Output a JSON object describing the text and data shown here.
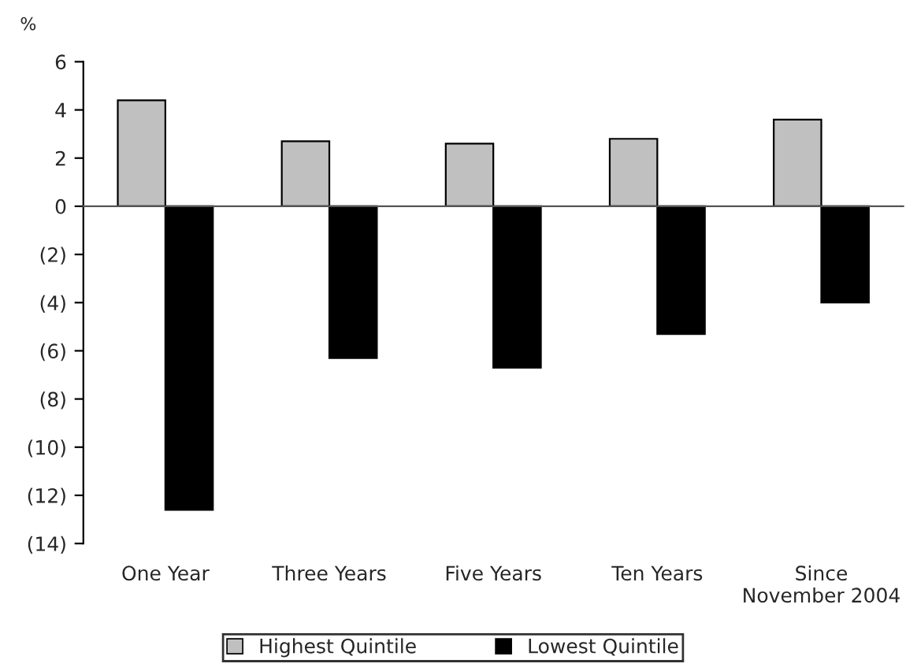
{
  "chart_data": {
    "type": "bar",
    "ylabel": "%",
    "categories": [
      "One Year",
      "Three Years",
      "Five Years",
      "Ten Years",
      "Since\nNovember 2004"
    ],
    "series": [
      {
        "name": "Highest Quintile",
        "color": "#c0c0c0",
        "values": [
          4.4,
          2.7,
          2.6,
          2.8,
          3.6
        ]
      },
      {
        "name": "Lowest Quintile",
        "color": "#000000",
        "values": [
          -12.6,
          -6.3,
          -6.7,
          -5.3,
          -4.0
        ]
      }
    ],
    "ylim": [
      -14,
      6
    ],
    "yticks": [
      {
        "value": -14,
        "label": "(14)"
      },
      {
        "value": -12,
        "label": "(12)"
      },
      {
        "value": -10,
        "label": "(10)"
      },
      {
        "value": -8,
        "label": "(8)"
      },
      {
        "value": -6,
        "label": "(6)"
      },
      {
        "value": -4,
        "label": "(4)"
      },
      {
        "value": -2,
        "label": "(2)"
      },
      0,
      2,
      4,
      6
    ],
    "legend": "bottom"
  }
}
